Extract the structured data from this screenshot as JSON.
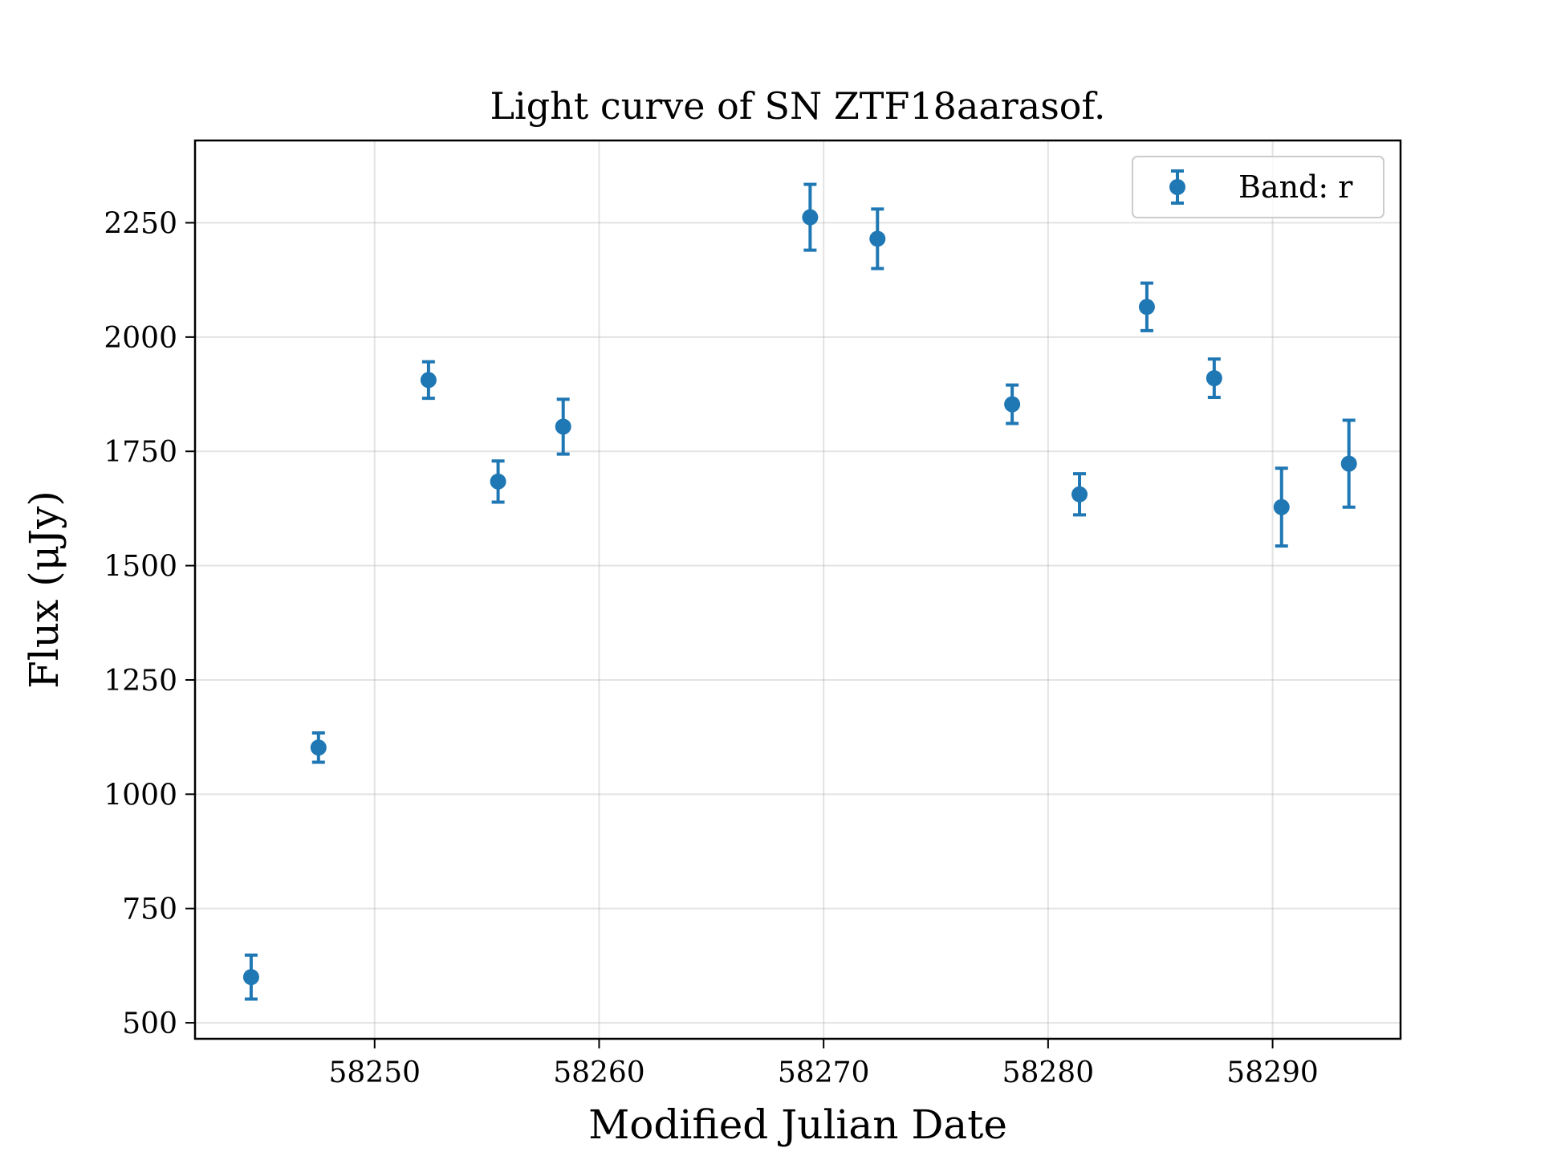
{
  "chart_data": {
    "type": "scatter",
    "title": "Light curve of SN ZTF18aarasof.",
    "xlabel": "Modified Julian Date",
    "ylabel": "Flux (μJy)",
    "xlim": [
      58242.0,
      58295.7
    ],
    "ylim": [
      465,
      2430
    ],
    "x_ticks": [
      58250,
      58260,
      58270,
      58280,
      58290
    ],
    "y_ticks": [
      500,
      750,
      1000,
      1250,
      1500,
      1750,
      2000,
      2250
    ],
    "grid": true,
    "legend_position": "top-right",
    "series": [
      {
        "name": "Band: r",
        "color": "#1f77b4",
        "marker": "circle-with-errorbar",
        "x": [
          58244.5,
          58247.5,
          58252.4,
          58255.5,
          58258.4,
          58269.4,
          58272.4,
          58278.4,
          58281.4,
          58284.4,
          58287.4,
          58290.4,
          58293.4
        ],
        "y": [
          600,
          1102,
          1906,
          1684,
          1804,
          2262,
          2215,
          1853,
          1656,
          2066,
          1910,
          1628,
          1723
        ],
        "yerr": [
          48,
          32,
          40,
          45,
          60,
          72,
          65,
          42,
          45,
          52,
          42,
          85,
          95
        ]
      }
    ]
  }
}
